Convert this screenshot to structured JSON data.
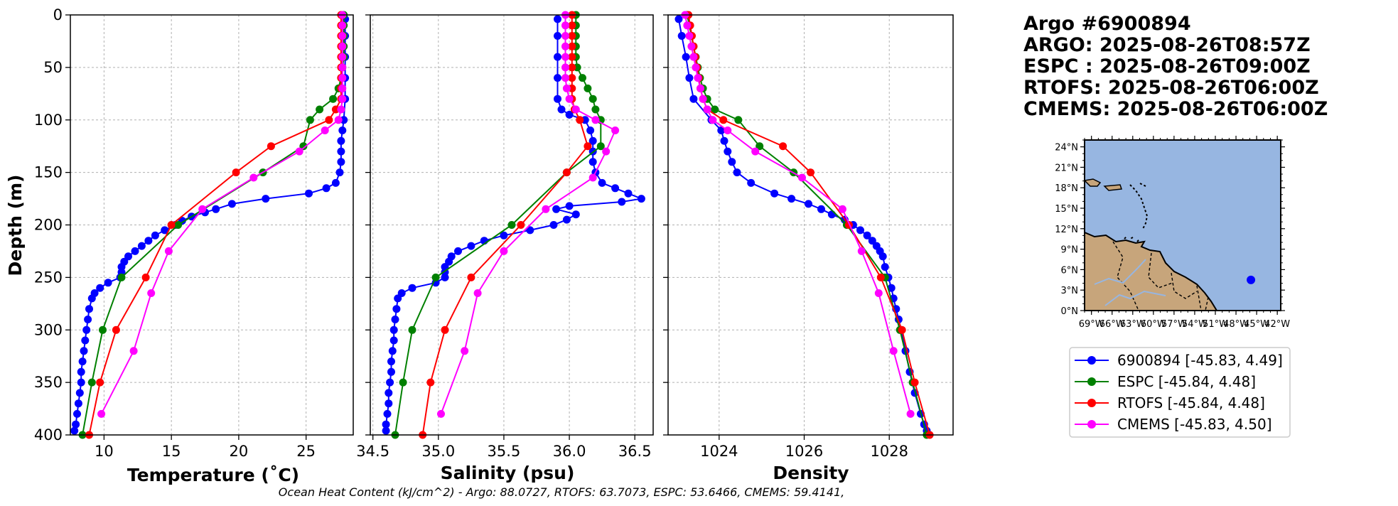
{
  "title_block": {
    "line1": "Argo #6900894",
    "line2": "ARGO: 2025-08-26T08:57Z",
    "line3": "ESPC : 2025-08-26T09:00Z",
    "line4": "RTOFS: 2025-08-26T06:00Z",
    "line5": "CMEMS: 2025-08-26T06:00Z"
  },
  "footer": "Ocean Heat Content (kJ/cm^2) - Argo: 88.0727,  RTOFS: 63.7073,  ESPC: 53.6466,  CMEMS: 59.4141,",
  "colors": {
    "argo": "#0000ff",
    "espc": "#008000",
    "rtofs": "#ff0000",
    "cmems": "#ff00ff",
    "ocean": "#97b6e1",
    "land": "#c7a57b",
    "grid": "#b0b0b0"
  },
  "legend": [
    {
      "label": "6900894 [-45.83, 4.49]",
      "color": "#0000ff"
    },
    {
      "label": "ESPC [-45.84, 4.48]",
      "color": "#008000"
    },
    {
      "label": "RTOFS [-45.84, 4.48]",
      "color": "#ff0000"
    },
    {
      "label": "CMEMS [-45.83, 4.50]",
      "color": "#ff00ff"
    }
  ],
  "map": {
    "lon_labels": [
      "69°W",
      "66°W",
      "63°W",
      "60°W",
      "57°W",
      "54°W",
      "51°W",
      "48°W",
      "45°W",
      "42°W"
    ],
    "lat_labels": [
      "0°N",
      "3°N",
      "6°N",
      "9°N",
      "12°N",
      "15°N",
      "18°N",
      "21°N",
      "24°N"
    ],
    "lon_range": [
      -70,
      -41.5
    ],
    "lat_range": [
      0,
      25
    ],
    "float_position": {
      "lon": -45.83,
      "lat": 4.49
    }
  },
  "chart_data": [
    {
      "type": "line",
      "xlabel": "Temperature (˚C)",
      "ylabel": "Depth (m)",
      "xlim": [
        7.5,
        28.5
      ],
      "ylim": [
        400,
        0
      ],
      "xticks": [
        "10",
        "15",
        "20",
        "25"
      ],
      "xtick_values": [
        10,
        15,
        20,
        25
      ],
      "yticks": [
        "0",
        "50",
        "100",
        "150",
        "200",
        "250",
        "300",
        "350",
        "400"
      ],
      "ytick_values": [
        0,
        50,
        100,
        150,
        200,
        250,
        300,
        350,
        400
      ],
      "series": [
        {
          "name": "Argo 6900894",
          "key": "argo",
          "depth": [
            4,
            20,
            40,
            60,
            80,
            100,
            110,
            120,
            130,
            140,
            150,
            160,
            165,
            170,
            175,
            180,
            185,
            188,
            192,
            196,
            200,
            205,
            210,
            215,
            220,
            225,
            230,
            235,
            240,
            245,
            250,
            255,
            260,
            265,
            270,
            280,
            290,
            300,
            310,
            320,
            330,
            340,
            350,
            360,
            370,
            380,
            390,
            396
          ],
          "values": [
            27.9,
            27.9,
            27.9,
            27.9,
            27.9,
            27.8,
            27.7,
            27.6,
            27.6,
            27.6,
            27.5,
            27.2,
            26.5,
            25.2,
            22.0,
            19.5,
            18.3,
            17.5,
            16.5,
            15.8,
            15.3,
            14.5,
            13.8,
            13.3,
            12.8,
            12.3,
            11.8,
            11.5,
            11.3,
            11.3,
            11.2,
            10.3,
            9.7,
            9.3,
            9.1,
            8.9,
            8.8,
            8.7,
            8.6,
            8.5,
            8.4,
            8.3,
            8.3,
            8.2,
            8.1,
            8.0,
            7.9,
            7.8
          ]
        },
        {
          "name": "ESPC",
          "key": "espc",
          "depth": [
            0,
            10,
            20,
            30,
            40,
            50,
            60,
            70,
            80,
            90,
            100,
            125,
            150,
            200,
            250,
            300,
            350,
            400
          ],
          "values": [
            27.8,
            27.8,
            27.8,
            27.8,
            27.8,
            27.7,
            27.6,
            27.4,
            27.0,
            26.0,
            25.3,
            24.8,
            21.8,
            15.5,
            11.3,
            9.9,
            9.1,
            8.4
          ]
        },
        {
          "name": "RTOFS",
          "key": "rtofs",
          "depth": [
            0,
            10,
            20,
            30,
            40,
            50,
            60,
            70,
            80,
            90,
            100,
            125,
            150,
            200,
            250,
            300,
            350,
            400
          ],
          "values": [
            27.6,
            27.6,
            27.6,
            27.6,
            27.6,
            27.6,
            27.6,
            27.6,
            27.6,
            27.2,
            26.7,
            22.4,
            19.8,
            15.0,
            13.1,
            10.9,
            9.7,
            8.9
          ]
        },
        {
          "name": "CMEMS",
          "key": "cmems",
          "depth": [
            0,
            10,
            20,
            30,
            40,
            50,
            60,
            70,
            80,
            90,
            100,
            110,
            130,
            155,
            185,
            225,
            265,
            320,
            380
          ],
          "values": [
            27.7,
            27.7,
            27.7,
            27.7,
            27.7,
            27.7,
            27.7,
            27.7,
            27.7,
            27.6,
            27.4,
            26.4,
            24.5,
            21.1,
            17.3,
            14.8,
            13.5,
            12.2,
            9.8
          ]
        }
      ]
    },
    {
      "type": "line",
      "xlabel": "Salinity (psu)",
      "ylabel": "",
      "xlim": [
        34.48,
        36.64
      ],
      "ylim": [
        400,
        0
      ],
      "xticks": [
        "34.5",
        "35.0",
        "35.5",
        "36.0",
        "36.5"
      ],
      "xtick_values": [
        34.5,
        35.0,
        35.5,
        36.0,
        36.5
      ],
      "series": [
        {
          "name": "Argo 6900894",
          "key": "argo",
          "depth": [
            4,
            20,
            40,
            60,
            80,
            90,
            95,
            100,
            110,
            120,
            130,
            140,
            150,
            160,
            165,
            170,
            175,
            178,
            182,
            185,
            190,
            195,
            200,
            205,
            210,
            215,
            220,
            225,
            230,
            235,
            240,
            245,
            250,
            255,
            260,
            265,
            270,
            280,
            290,
            300,
            310,
            320,
            330,
            340,
            350,
            360,
            370,
            380,
            390,
            396
          ],
          "values": [
            35.91,
            35.91,
            35.91,
            35.91,
            35.91,
            35.94,
            36.0,
            36.12,
            36.16,
            36.18,
            36.18,
            36.18,
            36.2,
            36.25,
            36.35,
            36.45,
            36.55,
            36.4,
            36.0,
            35.9,
            36.05,
            35.98,
            35.88,
            35.7,
            35.5,
            35.35,
            35.25,
            35.15,
            35.1,
            35.08,
            35.05,
            35.05,
            35.05,
            34.98,
            34.8,
            34.72,
            34.69,
            34.68,
            34.67,
            34.66,
            34.66,
            34.65,
            34.64,
            34.64,
            34.63,
            34.62,
            34.62,
            34.61,
            34.6,
            34.6
          ]
        },
        {
          "name": "ESPC",
          "key": "espc",
          "depth": [
            0,
            10,
            20,
            30,
            40,
            50,
            60,
            70,
            80,
            90,
            100,
            125,
            150,
            200,
            250,
            300,
            350,
            400
          ],
          "values": [
            36.05,
            36.05,
            36.05,
            36.05,
            36.05,
            36.06,
            36.1,
            36.14,
            36.18,
            36.2,
            36.24,
            36.24,
            35.98,
            35.56,
            34.98,
            34.8,
            34.73,
            34.67
          ]
        },
        {
          "name": "RTOFS",
          "key": "rtofs",
          "depth": [
            0,
            10,
            20,
            30,
            40,
            50,
            60,
            70,
            80,
            90,
            100,
            125,
            150,
            200,
            250,
            300,
            350,
            400
          ],
          "values": [
            36.02,
            36.02,
            36.02,
            36.02,
            36.02,
            36.02,
            36.02,
            36.02,
            36.02,
            36.04,
            36.08,
            36.14,
            35.98,
            35.63,
            35.25,
            35.05,
            34.94,
            34.88
          ]
        },
        {
          "name": "CMEMS",
          "key": "cmems",
          "depth": [
            0,
            10,
            20,
            30,
            40,
            50,
            60,
            70,
            80,
            90,
            100,
            110,
            130,
            155,
            185,
            225,
            265,
            320,
            380
          ],
          "values": [
            35.97,
            35.97,
            35.97,
            35.97,
            35.97,
            35.97,
            35.97,
            35.98,
            36.0,
            36.05,
            36.2,
            36.35,
            36.28,
            36.18,
            35.82,
            35.5,
            35.3,
            35.2,
            35.02
          ]
        }
      ]
    },
    {
      "type": "line",
      "xlabel": "Density",
      "ylabel": "",
      "xlim": [
        1022.8,
        1029.5
      ],
      "ylim": [
        400,
        0
      ],
      "xticks": [
        "1024",
        "1026",
        "1028"
      ],
      "xtick_values": [
        1024,
        1026,
        1028
      ],
      "series": [
        {
          "name": "Argo 6900894",
          "key": "argo",
          "depth": [
            4,
            20,
            40,
            60,
            80,
            100,
            110,
            120,
            130,
            140,
            150,
            160,
            170,
            175,
            180,
            185,
            190,
            195,
            200,
            205,
            210,
            215,
            220,
            225,
            230,
            240,
            250,
            260,
            270,
            280,
            290,
            300,
            320,
            340,
            360,
            380,
            390,
            396
          ],
          "values": [
            1023.05,
            1023.12,
            1023.22,
            1023.3,
            1023.4,
            1023.82,
            1024.05,
            1024.12,
            1024.2,
            1024.3,
            1024.42,
            1024.75,
            1025.3,
            1025.7,
            1026.1,
            1026.4,
            1026.65,
            1026.95,
            1027.15,
            1027.32,
            1027.48,
            1027.6,
            1027.7,
            1027.78,
            1027.85,
            1027.9,
            1027.98,
            1028.05,
            1028.1,
            1028.16,
            1028.22,
            1028.28,
            1028.38,
            1028.48,
            1028.6,
            1028.74,
            1028.82,
            1028.88
          ]
        },
        {
          "name": "ESPC",
          "key": "espc",
          "depth": [
            0,
            10,
            20,
            30,
            40,
            50,
            60,
            70,
            80,
            90,
            100,
            125,
            150,
            200,
            250,
            300,
            350,
            400
          ],
          "values": [
            1023.25,
            1023.3,
            1023.35,
            1023.4,
            1023.45,
            1023.5,
            1023.55,
            1023.62,
            1023.72,
            1023.9,
            1024.45,
            1024.95,
            1025.75,
            1027.0,
            1027.9,
            1028.25,
            1028.55,
            1028.88
          ]
        },
        {
          "name": "RTOFS",
          "key": "rtofs",
          "depth": [
            0,
            10,
            20,
            30,
            40,
            50,
            60,
            70,
            80,
            90,
            100,
            125,
            150,
            200,
            250,
            300,
            350,
            400
          ],
          "values": [
            1023.28,
            1023.32,
            1023.36,
            1023.4,
            1023.44,
            1023.48,
            1023.52,
            1023.56,
            1023.62,
            1023.72,
            1024.1,
            1025.5,
            1026.15,
            1027.05,
            1027.8,
            1028.3,
            1028.6,
            1028.95
          ]
        },
        {
          "name": "CMEMS",
          "key": "cmems",
          "depth": [
            0,
            10,
            20,
            30,
            40,
            50,
            60,
            70,
            80,
            90,
            100,
            110,
            130,
            155,
            185,
            225,
            265,
            320,
            380
          ],
          "values": [
            1023.2,
            1023.25,
            1023.3,
            1023.35,
            1023.4,
            1023.45,
            1023.5,
            1023.56,
            1023.62,
            1023.72,
            1023.85,
            1024.2,
            1024.85,
            1025.95,
            1026.9,
            1027.35,
            1027.75,
            1028.1,
            1028.5
          ]
        }
      ]
    }
  ]
}
